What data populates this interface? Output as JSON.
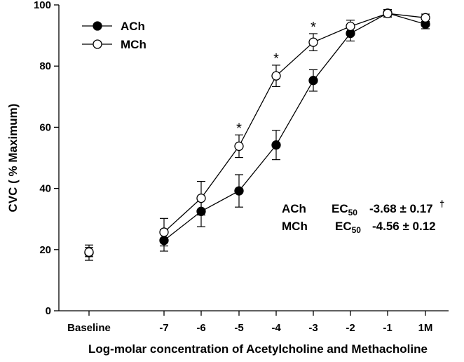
{
  "chart_data": {
    "type": "line",
    "xlabel": "Log-molar concentration of Acetylcholine and Methacholine",
    "ylabel": "CVC ( % Maximum)",
    "ylim": [
      0,
      100
    ],
    "yticks": [
      "0",
      "20",
      "40",
      "60",
      "80",
      "100"
    ],
    "x_categories": [
      "Baseline",
      "-7",
      "-6",
      "-5",
      "-4",
      "-3",
      "-2",
      "-1",
      "1M"
    ],
    "legend_position": "top-left",
    "grid": false,
    "series": [
      {
        "name": "ACh",
        "marker": "filled-circle",
        "color": "#000000",
        "values": [
          19,
          23,
          32.5,
          39.2,
          54.2,
          75.3,
          90.7,
          97.3,
          93.7
        ],
        "error": [
          2.5,
          3.5,
          5,
          5.3,
          4.8,
          3.5,
          2.5,
          1.2,
          1.5
        ],
        "connect_from_index": 1
      },
      {
        "name": "MCh",
        "marker": "open-circle",
        "color": "#000000",
        "values": [
          19.2,
          25.7,
          36.8,
          53.8,
          76.8,
          87.8,
          93,
          97.2,
          95.8
        ],
        "error": [
          1.5,
          4.5,
          5.5,
          3.7,
          3.5,
          2.8,
          2,
          1.2,
          1.2
        ],
        "connect_from_index": 1
      }
    ],
    "significance_marks": [
      {
        "category": "-5",
        "label": "*"
      },
      {
        "category": "-4",
        "label": "*"
      },
      {
        "category": "-3",
        "label": "*"
      }
    ],
    "annotations": {
      "ach_row": {
        "drug": "ACh",
        "ec_label": "EC",
        "ec_sub": "50",
        "value": "-3.68 ± 0.17",
        "dagger": "†"
      },
      "mch_row": {
        "drug": "MCh",
        "ec_label": "EC",
        "ec_sub": "50",
        "value": "-4.56 ± 0.12"
      }
    }
  }
}
